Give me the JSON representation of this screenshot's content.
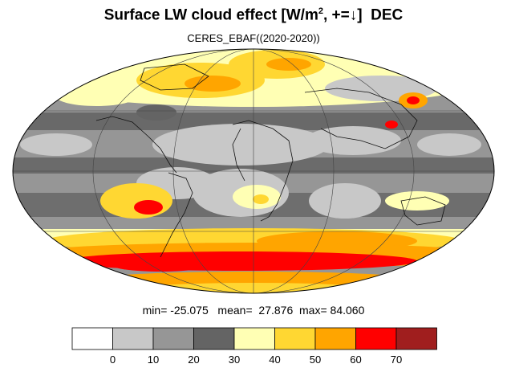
{
  "title": {
    "main": "Surface LW cloud effect [W/m",
    "superscript": "2",
    "after_sup": ", +=",
    "arrow": "↓",
    "bracket": "]",
    "month": "DEC"
  },
  "subtitle": "CERES_EBAF((2020-2020))",
  "stats": {
    "min_label": "min=",
    "min_value": "-25.075",
    "mean_label": "mean=",
    "mean_value": "27.876",
    "max_label": "max=",
    "max_value": "84.060"
  },
  "colorbar": {
    "levels": [
      "0",
      "10",
      "20",
      "30",
      "40",
      "50",
      "60",
      "70"
    ],
    "colors": [
      "#ffffff",
      "#c8c8c8",
      "#969696",
      "#646464",
      "#ffffb4",
      "#ffd732",
      "#ffa500",
      "#ff0000",
      "#a01e1e"
    ]
  },
  "map": {
    "projection": "mollweide",
    "grid": true,
    "coastlines": true
  }
}
